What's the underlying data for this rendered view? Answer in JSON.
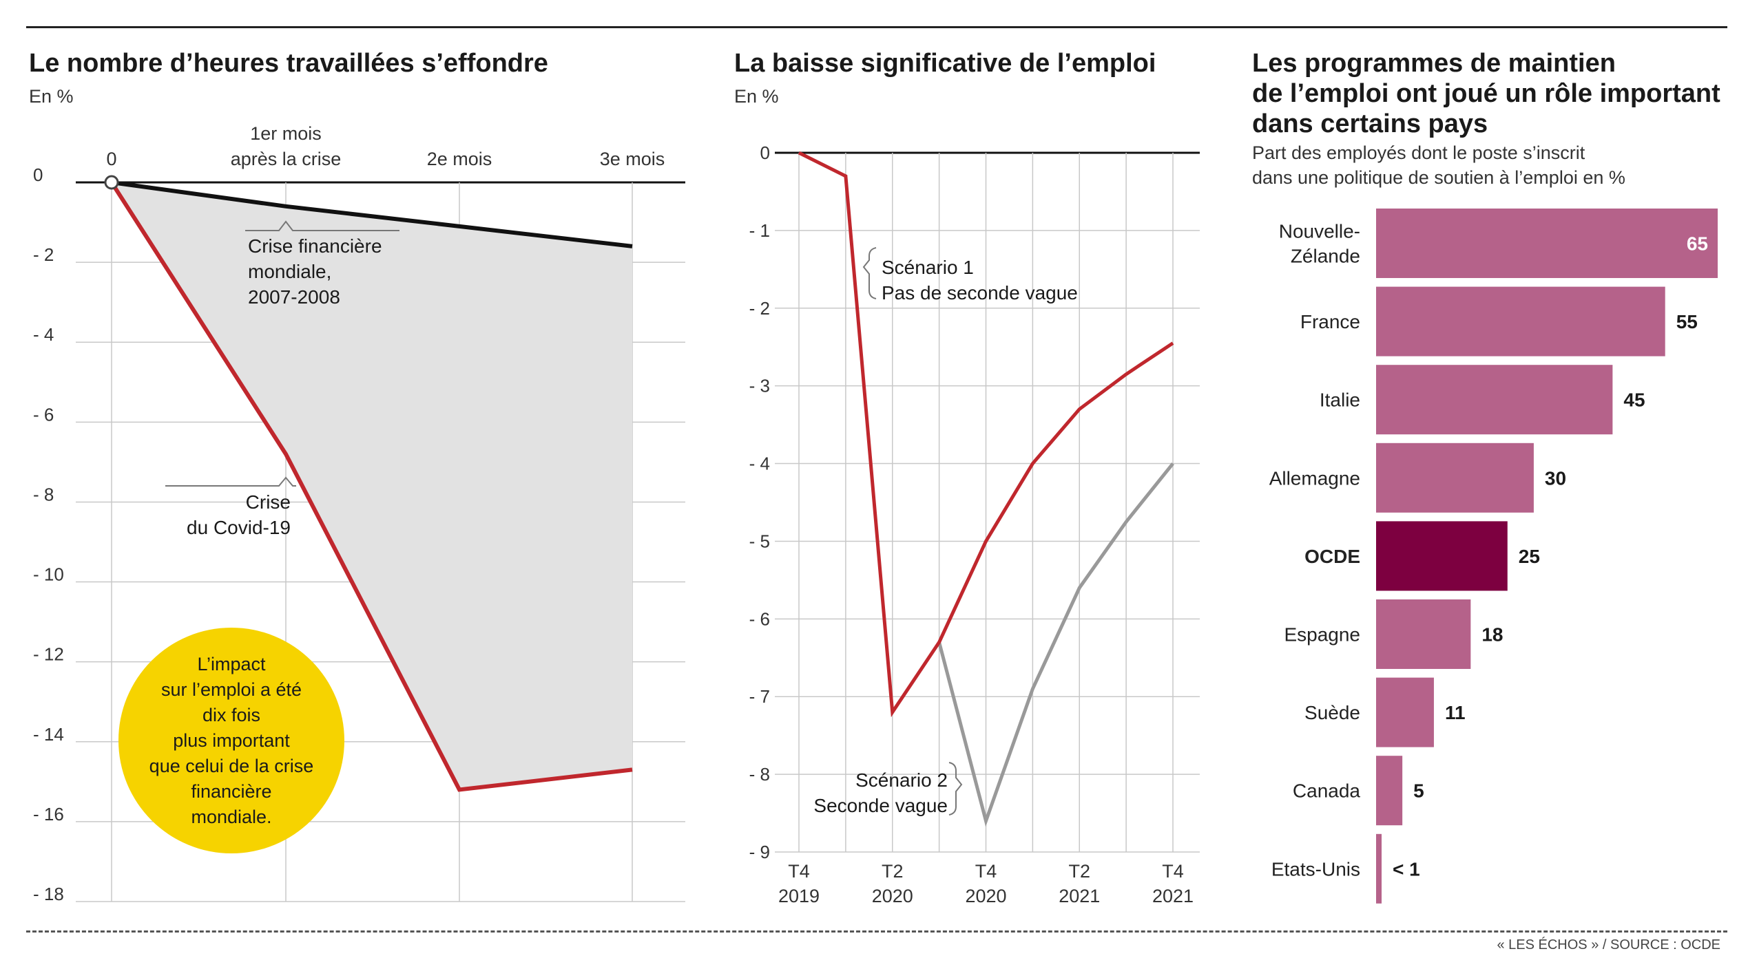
{
  "source": "« LES ÉCHOS » / SOURCE : OCDE",
  "colors": {
    "covid": "#c0272d",
    "financial": "#111111",
    "scenario2": "#999999",
    "bar": "#b5628a",
    "bar_highlight": "#7d0040",
    "bubble": "#f6d300",
    "fill": "#e2e2e2"
  },
  "chart_data": [
    {
      "type": "line",
      "title": "Le nombre d’heures travaillées s’effondre",
      "subtitle": "En %",
      "x_ticks": [
        "0",
        "1er mois après la crise",
        "2e mois",
        "3e mois"
      ],
      "x_tick_lines": [
        [
          "0"
        ],
        [
          "1er mois",
          "après la crise"
        ],
        [
          "2e mois"
        ],
        [
          "3e mois"
        ]
      ],
      "x": [
        0,
        1,
        2,
        3
      ],
      "y_ticks": [
        "0",
        "- 2",
        "- 4",
        "- 6",
        "- 8",
        "- 10",
        "- 12",
        "- 14",
        "- 16",
        "- 18"
      ],
      "ylim": [
        -18,
        0
      ],
      "series": [
        {
          "name": "Crise financière mondiale, 2007-2008",
          "label_lines": [
            "Crise financière",
            "mondiale,",
            "2007-2008"
          ],
          "values": [
            0,
            -0.6,
            -1.1,
            -1.6
          ]
        },
        {
          "name": "Crise du Covid-19",
          "label_lines": [
            "Crise",
            "du Covid-19"
          ],
          "values": [
            0,
            -6.8,
            -15.2,
            -14.7
          ]
        }
      ],
      "annotation_lines": [
        "L’impact",
        "sur l’emploi a été",
        "dix fois",
        "plus important",
        "que celui de la crise",
        "financière",
        "mondiale."
      ]
    },
    {
      "type": "line",
      "title": "La baisse significative de l’emploi",
      "subtitle": "En %",
      "x_ticks": [
        [
          "T4",
          "2019"
        ],
        [
          "T2",
          "2020"
        ],
        [
          "T4",
          "2020"
        ],
        [
          "T2",
          "2021"
        ],
        [
          "T4",
          "2021"
        ]
      ],
      "x": [
        0,
        0.5,
        1,
        1.5,
        2,
        2.5,
        3,
        3.5,
        4
      ],
      "y_ticks": [
        "0",
        "- 1",
        "- 2",
        "- 3",
        "- 4",
        "- 5",
        "- 6",
        "- 7",
        "- 8",
        "- 9"
      ],
      "ylim": [
        -9,
        0
      ],
      "series": [
        {
          "name": "Scénario 1 Pas de seconde vague",
          "label_lines": [
            "Scénario 1",
            "Pas de seconde vague"
          ],
          "x": [
            0,
            0.5,
            1,
            1.5,
            2,
            2.5,
            3,
            3.5,
            4
          ],
          "values": [
            0,
            -0.3,
            -7.2,
            -6.3,
            -5.0,
            -4.0,
            -3.3,
            -2.85,
            -2.45
          ]
        },
        {
          "name": "Scénario 2 Seconde vague",
          "label_lines": [
            "Scénario 2",
            "Seconde vague"
          ],
          "x": [
            1.5,
            2,
            2.5,
            3,
            3.5,
            4
          ],
          "values": [
            -6.3,
            -8.6,
            -6.9,
            -5.6,
            -4.75,
            -4.0
          ]
        }
      ]
    },
    {
      "type": "bar",
      "title_lines": [
        "Les programmes de maintien",
        "de l’emploi ont joué un rôle important",
        "dans certains pays"
      ],
      "subtitle_lines": [
        "Part des employés dont le poste s’inscrit",
        "dans une politique de soutien à l’emploi en %"
      ],
      "categories": [
        "Nouvelle-Zélande",
        "France",
        "Italie",
        "Allemagne",
        "OCDE",
        "Espagne",
        "Suède",
        "Canada",
        "Etats-Unis"
      ],
      "category_lines": [
        [
          "Nouvelle-",
          "Zélande"
        ],
        [
          "France"
        ],
        [
          "Italie"
        ],
        [
          "Allemagne"
        ],
        [
          "OCDE"
        ],
        [
          "Espagne"
        ],
        [
          "Suède"
        ],
        [
          "Canada"
        ],
        [
          "Etats-Unis"
        ]
      ],
      "values": [
        65,
        55,
        45,
        30,
        25,
        18,
        11,
        5,
        0.8
      ],
      "value_labels": [
        "65",
        "55",
        "45",
        "30",
        "25",
        "18",
        "11",
        "5",
        "< 1"
      ],
      "highlight": "OCDE"
    }
  ]
}
